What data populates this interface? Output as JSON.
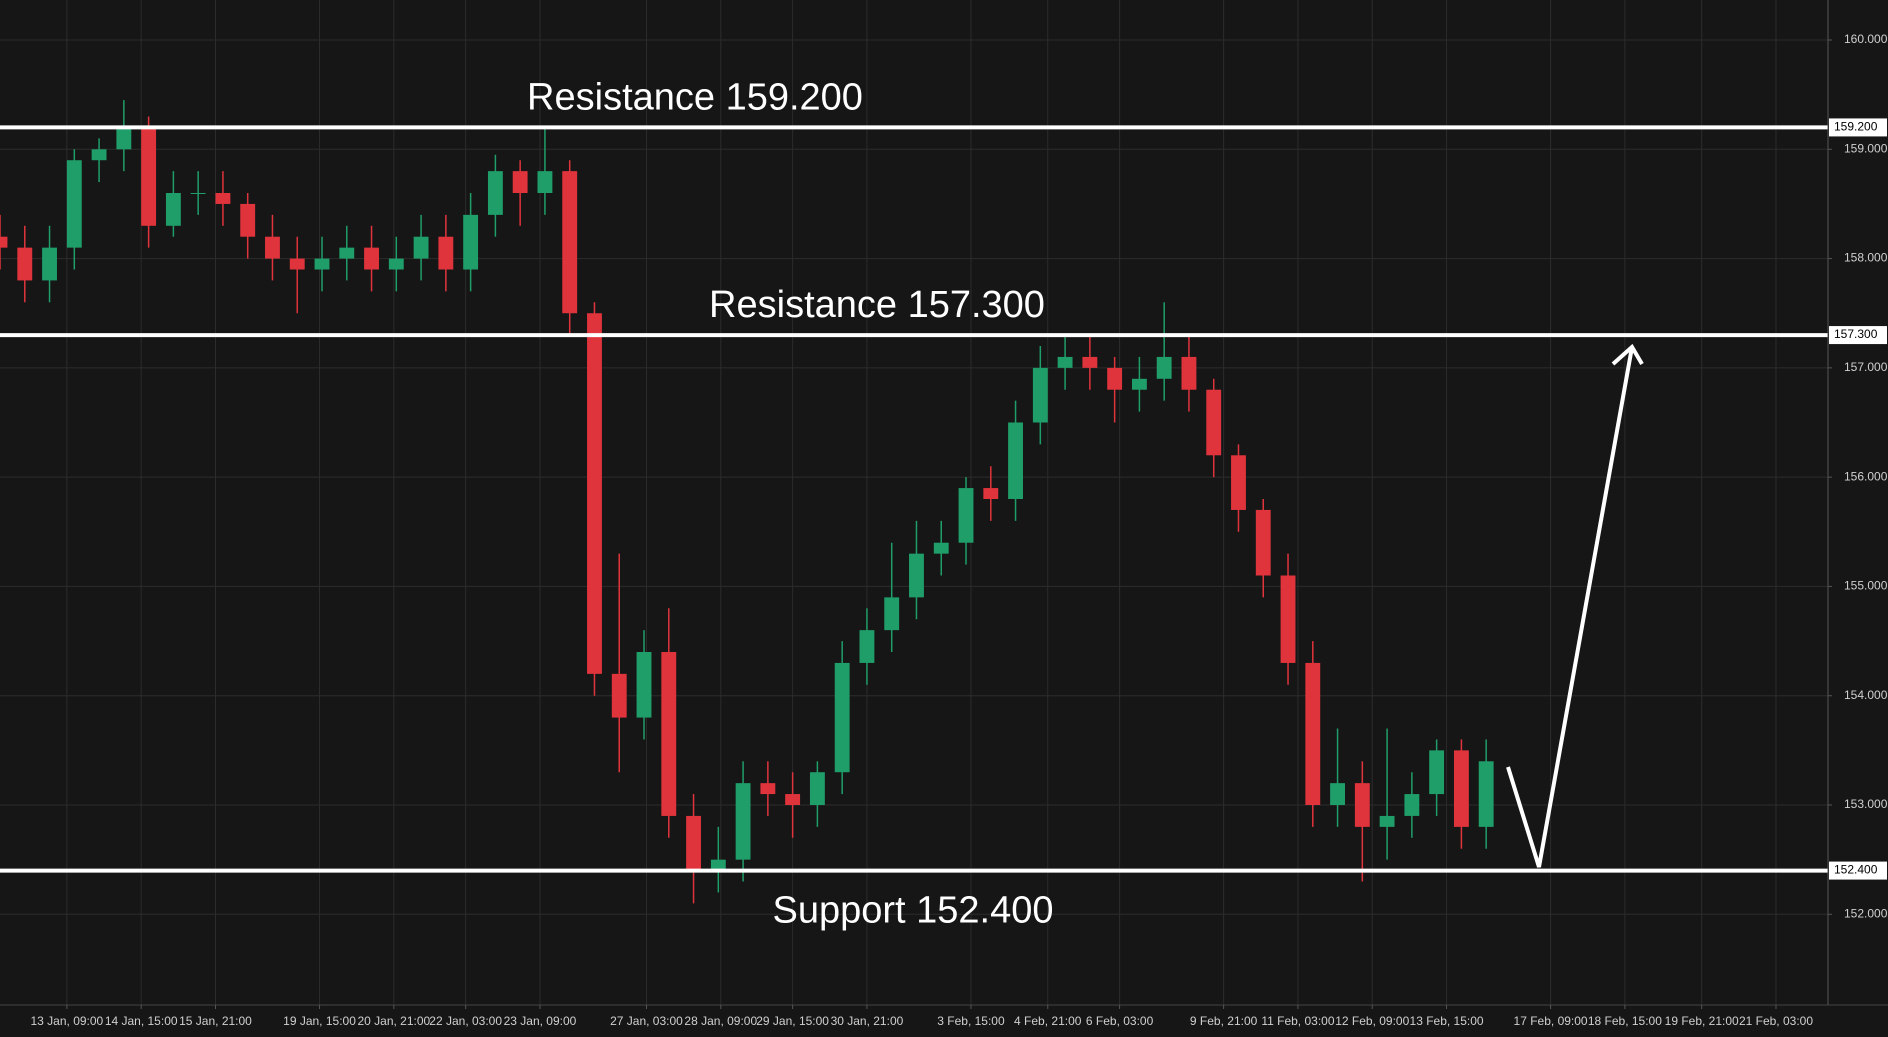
{
  "chart_data": {
    "type": "candlestick",
    "xlim": [
      0,
      738
    ],
    "ylim": [
      151.17,
      160.366
    ],
    "grid": true,
    "up_color": "#1f9e6a",
    "down_color": "#e0343c",
    "yticks": [
      {
        "value": 152,
        "label": "152.000"
      },
      {
        "value": 153,
        "label": "153.000"
      },
      {
        "value": 154,
        "label": "154.000"
      },
      {
        "value": 155,
        "label": "155.000"
      },
      {
        "value": 156,
        "label": "156.000"
      },
      {
        "value": 157,
        "label": "157.000"
      },
      {
        "value": 158,
        "label": "158.000"
      },
      {
        "value": 159,
        "label": "159.000"
      },
      {
        "value": 160,
        "label": "160.000"
      }
    ],
    "xticks": [
      {
        "value": 27,
        "label": "13 Jan, 09:00"
      },
      {
        "value": 57,
        "label": "14 Jan, 15:00"
      },
      {
        "value": 87,
        "label": "15 Jan, 21:00"
      },
      {
        "value": 129,
        "label": "19 Jan, 15:00"
      },
      {
        "value": 159,
        "label": "20 Jan, 21:00"
      },
      {
        "value": 188,
        "label": "22 Jan, 03:00"
      },
      {
        "value": 218,
        "label": "23 Jan, 09:00"
      },
      {
        "value": 261,
        "label": "27 Jan, 03:00"
      },
      {
        "value": 291,
        "label": "28 Jan, 09:00"
      },
      {
        "value": 320,
        "label": "29 Jan, 15:00"
      },
      {
        "value": 350,
        "label": "30 Jan, 21:00"
      },
      {
        "value": 392,
        "label": "3 Feb, 15:00"
      },
      {
        "value": 423,
        "label": "4 Feb, 21:00"
      },
      {
        "value": 452,
        "label": "6 Feb, 03:00"
      },
      {
        "value": 494,
        "label": "9 Feb, 21:00"
      },
      {
        "value": 524,
        "label": "11 Feb, 03:00"
      },
      {
        "value": 554,
        "label": "12 Feb, 09:00"
      },
      {
        "value": 584,
        "label": "13 Feb, 15:00"
      },
      {
        "value": 626,
        "label": "17 Feb, 09:00"
      },
      {
        "value": 656,
        "label": "18 Feb, 15:00"
      },
      {
        "value": 687,
        "label": "19 Feb, 21:00"
      },
      {
        "value": 717,
        "label": "21 Feb, 03:00"
      }
    ],
    "levels": [
      {
        "value": 159.2,
        "label": "159.200"
      },
      {
        "value": 157.3,
        "label": "157.300"
      },
      {
        "value": 152.4,
        "label": "152.400"
      }
    ],
    "annotations": [
      "Resistance 159.200",
      "Resistance 157.300",
      "Support 152.400"
    ],
    "x": [
      0,
      10,
      20,
      30,
      40,
      50,
      60,
      70,
      80,
      90,
      100,
      110,
      120,
      130,
      140,
      150,
      160,
      170,
      180,
      190,
      200,
      210,
      220,
      230,
      240,
      250,
      260,
      270,
      280,
      290,
      300,
      310,
      320,
      330,
      340,
      350,
      360,
      370,
      380,
      390,
      400,
      410,
      420,
      430,
      440,
      450,
      460,
      470,
      480,
      490,
      500,
      510,
      520,
      530,
      540,
      550,
      560,
      570,
      580,
      590,
      600
    ],
    "open": [
      158.2,
      158.1,
      157.8,
      158.1,
      158.9,
      159.0,
      159.2,
      158.3,
      158.6,
      158.6,
      158.5,
      158.2,
      158.0,
      157.9,
      158.0,
      158.1,
      157.9,
      158.0,
      158.2,
      157.9,
      158.4,
      158.8,
      158.6,
      158.8,
      157.5,
      154.2,
      153.8,
      154.4,
      152.9,
      152.4,
      152.5,
      153.2,
      153.1,
      153.0,
      153.3,
      154.3,
      154.6,
      154.9,
      155.3,
      155.4,
      155.9,
      155.8,
      156.5,
      157.0,
      157.1,
      157.0,
      156.8,
      156.9,
      157.1,
      156.8,
      156.2,
      155.7,
      155.1,
      154.3,
      153.0,
      153.2,
      152.8,
      152.9,
      153.1,
      153.5,
      152.8
    ],
    "high": [
      158.4,
      158.3,
      158.3,
      159.0,
      159.1,
      159.45,
      159.3,
      158.8,
      158.8,
      158.8,
      158.6,
      158.4,
      158.2,
      158.2,
      158.3,
      158.3,
      158.2,
      158.4,
      158.4,
      158.6,
      158.95,
      158.9,
      159.2,
      158.9,
      157.6,
      155.3,
      154.6,
      154.8,
      153.1,
      152.8,
      153.4,
      153.4,
      153.3,
      153.4,
      154.5,
      154.8,
      155.4,
      155.6,
      155.6,
      156.0,
      156.1,
      156.7,
      157.2,
      157.3,
      157.3,
      157.1,
      157.1,
      157.6,
      157.3,
      156.9,
      156.3,
      155.8,
      155.3,
      154.5,
      153.7,
      153.4,
      153.7,
      153.3,
      153.6,
      153.6,
      153.6
    ],
    "low": [
      157.9,
      157.6,
      157.6,
      157.9,
      158.7,
      158.8,
      158.1,
      158.2,
      158.4,
      158.3,
      158.0,
      157.8,
      157.5,
      157.7,
      157.8,
      157.7,
      157.7,
      157.8,
      157.7,
      157.7,
      158.2,
      158.3,
      158.4,
      157.3,
      154.0,
      153.3,
      153.6,
      152.7,
      152.1,
      152.2,
      152.3,
      152.9,
      152.7,
      152.8,
      153.1,
      154.1,
      154.4,
      154.7,
      155.1,
      155.2,
      155.6,
      155.6,
      156.3,
      156.8,
      156.8,
      156.5,
      156.6,
      156.7,
      156.6,
      156.0,
      155.5,
      154.9,
      154.1,
      152.8,
      152.8,
      152.3,
      152.5,
      152.7,
      152.9,
      152.6,
      152.6
    ],
    "close": [
      158.1,
      157.8,
      158.1,
      158.9,
      159.0,
      159.2,
      158.3,
      158.6,
      158.6,
      158.5,
      158.2,
      158.0,
      157.9,
      158.0,
      158.1,
      157.9,
      158.0,
      158.2,
      157.9,
      158.4,
      158.8,
      158.6,
      158.8,
      157.5,
      154.2,
      153.8,
      154.4,
      152.9,
      152.4,
      152.5,
      153.2,
      153.1,
      153.0,
      153.3,
      154.3,
      154.6,
      154.9,
      155.3,
      155.4,
      155.9,
      155.8,
      156.5,
      157.0,
      157.1,
      157.0,
      156.8,
      156.9,
      157.1,
      156.8,
      156.2,
      155.7,
      155.1,
      154.3,
      153.0,
      153.2,
      152.8,
      152.9,
      153.1,
      153.5,
      152.8,
      153.4
    ]
  }
}
